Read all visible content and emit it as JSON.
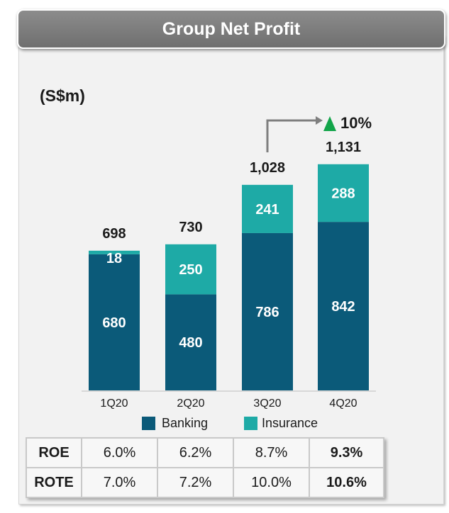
{
  "header": {
    "title": "Group Net Profit"
  },
  "chart_data": {
    "type": "bar",
    "stacked": true,
    "unit_label": "(S$m)",
    "categories": [
      "1Q20",
      "2Q20",
      "3Q20",
      "4Q20"
    ],
    "series": [
      {
        "name": "Banking",
        "values": [
          680,
          480,
          786,
          842
        ],
        "color": "#0b5a79"
      },
      {
        "name": "Insurance",
        "values": [
          18,
          250,
          241,
          288
        ],
        "color": "#1eaaa6"
      }
    ],
    "totals": [
      "698",
      "730",
      "1,028",
      "1,131"
    ],
    "ylim": [
      0,
      1200
    ],
    "annotation": {
      "from": "3Q20",
      "to": "4Q20",
      "text": "10%",
      "direction": "up",
      "color": "#13a54a"
    },
    "legend_position": "bottom"
  },
  "metrics_table": {
    "rows": [
      {
        "label": "ROE",
        "values": [
          "6.0%",
          "6.2%",
          "8.7%",
          "9.3%"
        ]
      },
      {
        "label": "ROTE",
        "values": [
          "7.0%",
          "7.2%",
          "10.0%",
          "10.6%"
        ]
      }
    ]
  }
}
